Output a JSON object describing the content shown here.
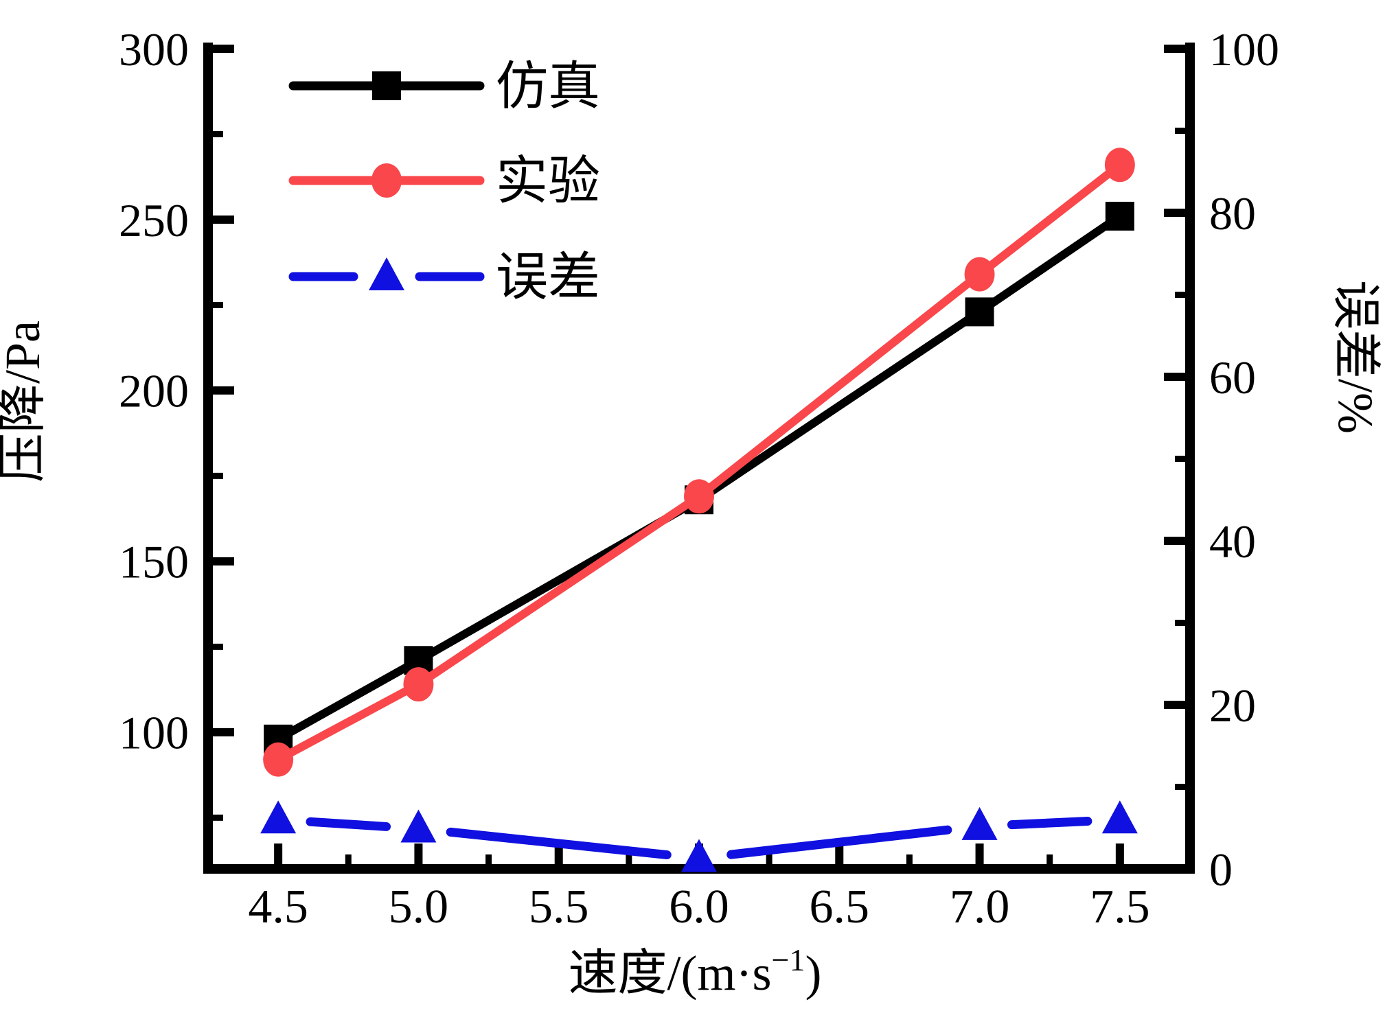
{
  "figure": {
    "background": "#FFFFFF",
    "text_color": "#000000"
  },
  "chart_data": {
    "type": "line",
    "x": [
      4.5,
      5.0,
      6.0,
      7.0,
      7.5
    ],
    "series": [
      {
        "name": "仿真",
        "yaxis": "left",
        "color": "#000000",
        "marker": "square",
        "values": [
          98,
          121,
          168,
          223,
          251
        ]
      },
      {
        "name": "实验",
        "yaxis": "left",
        "color": "#F9474B",
        "marker": "circle",
        "values": [
          92,
          114,
          169,
          234,
          266
        ]
      },
      {
        "name": "误差",
        "yaxis": "right",
        "color": "#1010E0",
        "marker": "triangle",
        "values": [
          6.0,
          4.9,
          1.3,
          5.2,
          6.0
        ]
      }
    ],
    "xlabel": {
      "pre": "速度/(m·s",
      "sup": "−1",
      "post": ")"
    },
    "x_axis": {
      "range": [
        4.25,
        7.75
      ],
      "major_ticks": [
        "4.5",
        "5.0",
        "5.5",
        "6.0",
        "6.5",
        "7.0",
        "7.5"
      ],
      "minor_ticks": [
        4.75,
        5.25,
        5.75,
        6.25,
        6.75,
        7.25
      ]
    },
    "left_axis": {
      "label": "压降/Pa",
      "range": [
        60,
        300
      ],
      "major_ticks": [
        "300",
        "250",
        "200",
        "150",
        "100"
      ],
      "minor_ticks": [
        275,
        225,
        175,
        125,
        75
      ]
    },
    "right_axis": {
      "label": "误差/%",
      "range": [
        0,
        100
      ],
      "major_ticks": [
        "100",
        "80",
        "60",
        "40",
        "20",
        "0"
      ],
      "minor_ticks": [
        90,
        70,
        50,
        30,
        10
      ]
    },
    "legend_position": "top-left",
    "grid": false
  }
}
